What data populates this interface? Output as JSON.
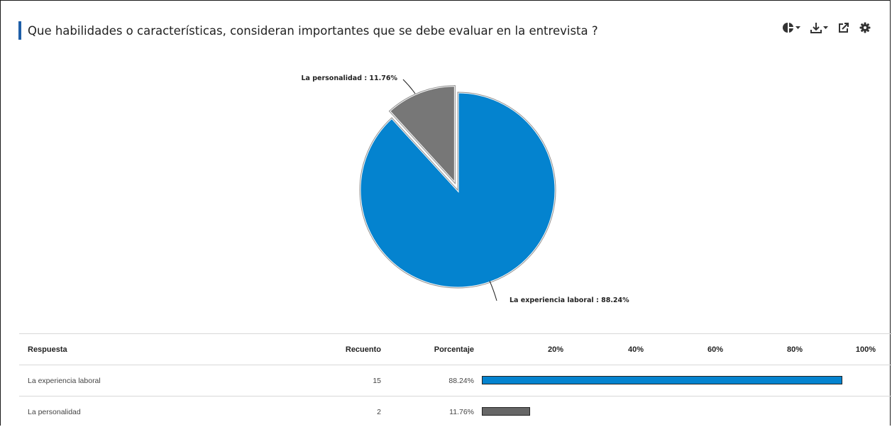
{
  "title": "Que habilidades o características, consideran importantes que se debe evaluar en la entrevista ?",
  "toolbar": [
    {
      "icon": "chart-type-icon",
      "has_dropdown": true
    },
    {
      "icon": "download-icon",
      "has_dropdown": true
    },
    {
      "icon": "share-icon",
      "has_dropdown": false
    },
    {
      "icon": "settings-icon",
      "has_dropdown": false
    }
  ],
  "chart_data": {
    "type": "pie",
    "slices": [
      {
        "label": "La experiencia laboral",
        "value": 88.24,
        "count": 15,
        "color": "#0483cf",
        "label_text": "La experiencia laboral  : 88.24%"
      },
      {
        "label": "La personalidad",
        "value": 11.76,
        "count": 2,
        "color": "#777777",
        "label_text": "La personalidad  : 11.76%",
        "exploded": true
      }
    ]
  },
  "table": {
    "headers": {
      "response": "Respuesta",
      "count": "Recuento",
      "percent": "Porcentaje"
    },
    "ticks": [
      "20%",
      "40%",
      "60%",
      "80%",
      "100%"
    ],
    "rows": [
      {
        "response": "La experiencia laboral",
        "count": "15",
        "percent": "88.24%",
        "value": 88.24,
        "color": "#0483cf"
      },
      {
        "response": "La personalidad",
        "count": "2",
        "percent": "11.76%",
        "value": 11.76,
        "color": "#666666"
      }
    ]
  }
}
